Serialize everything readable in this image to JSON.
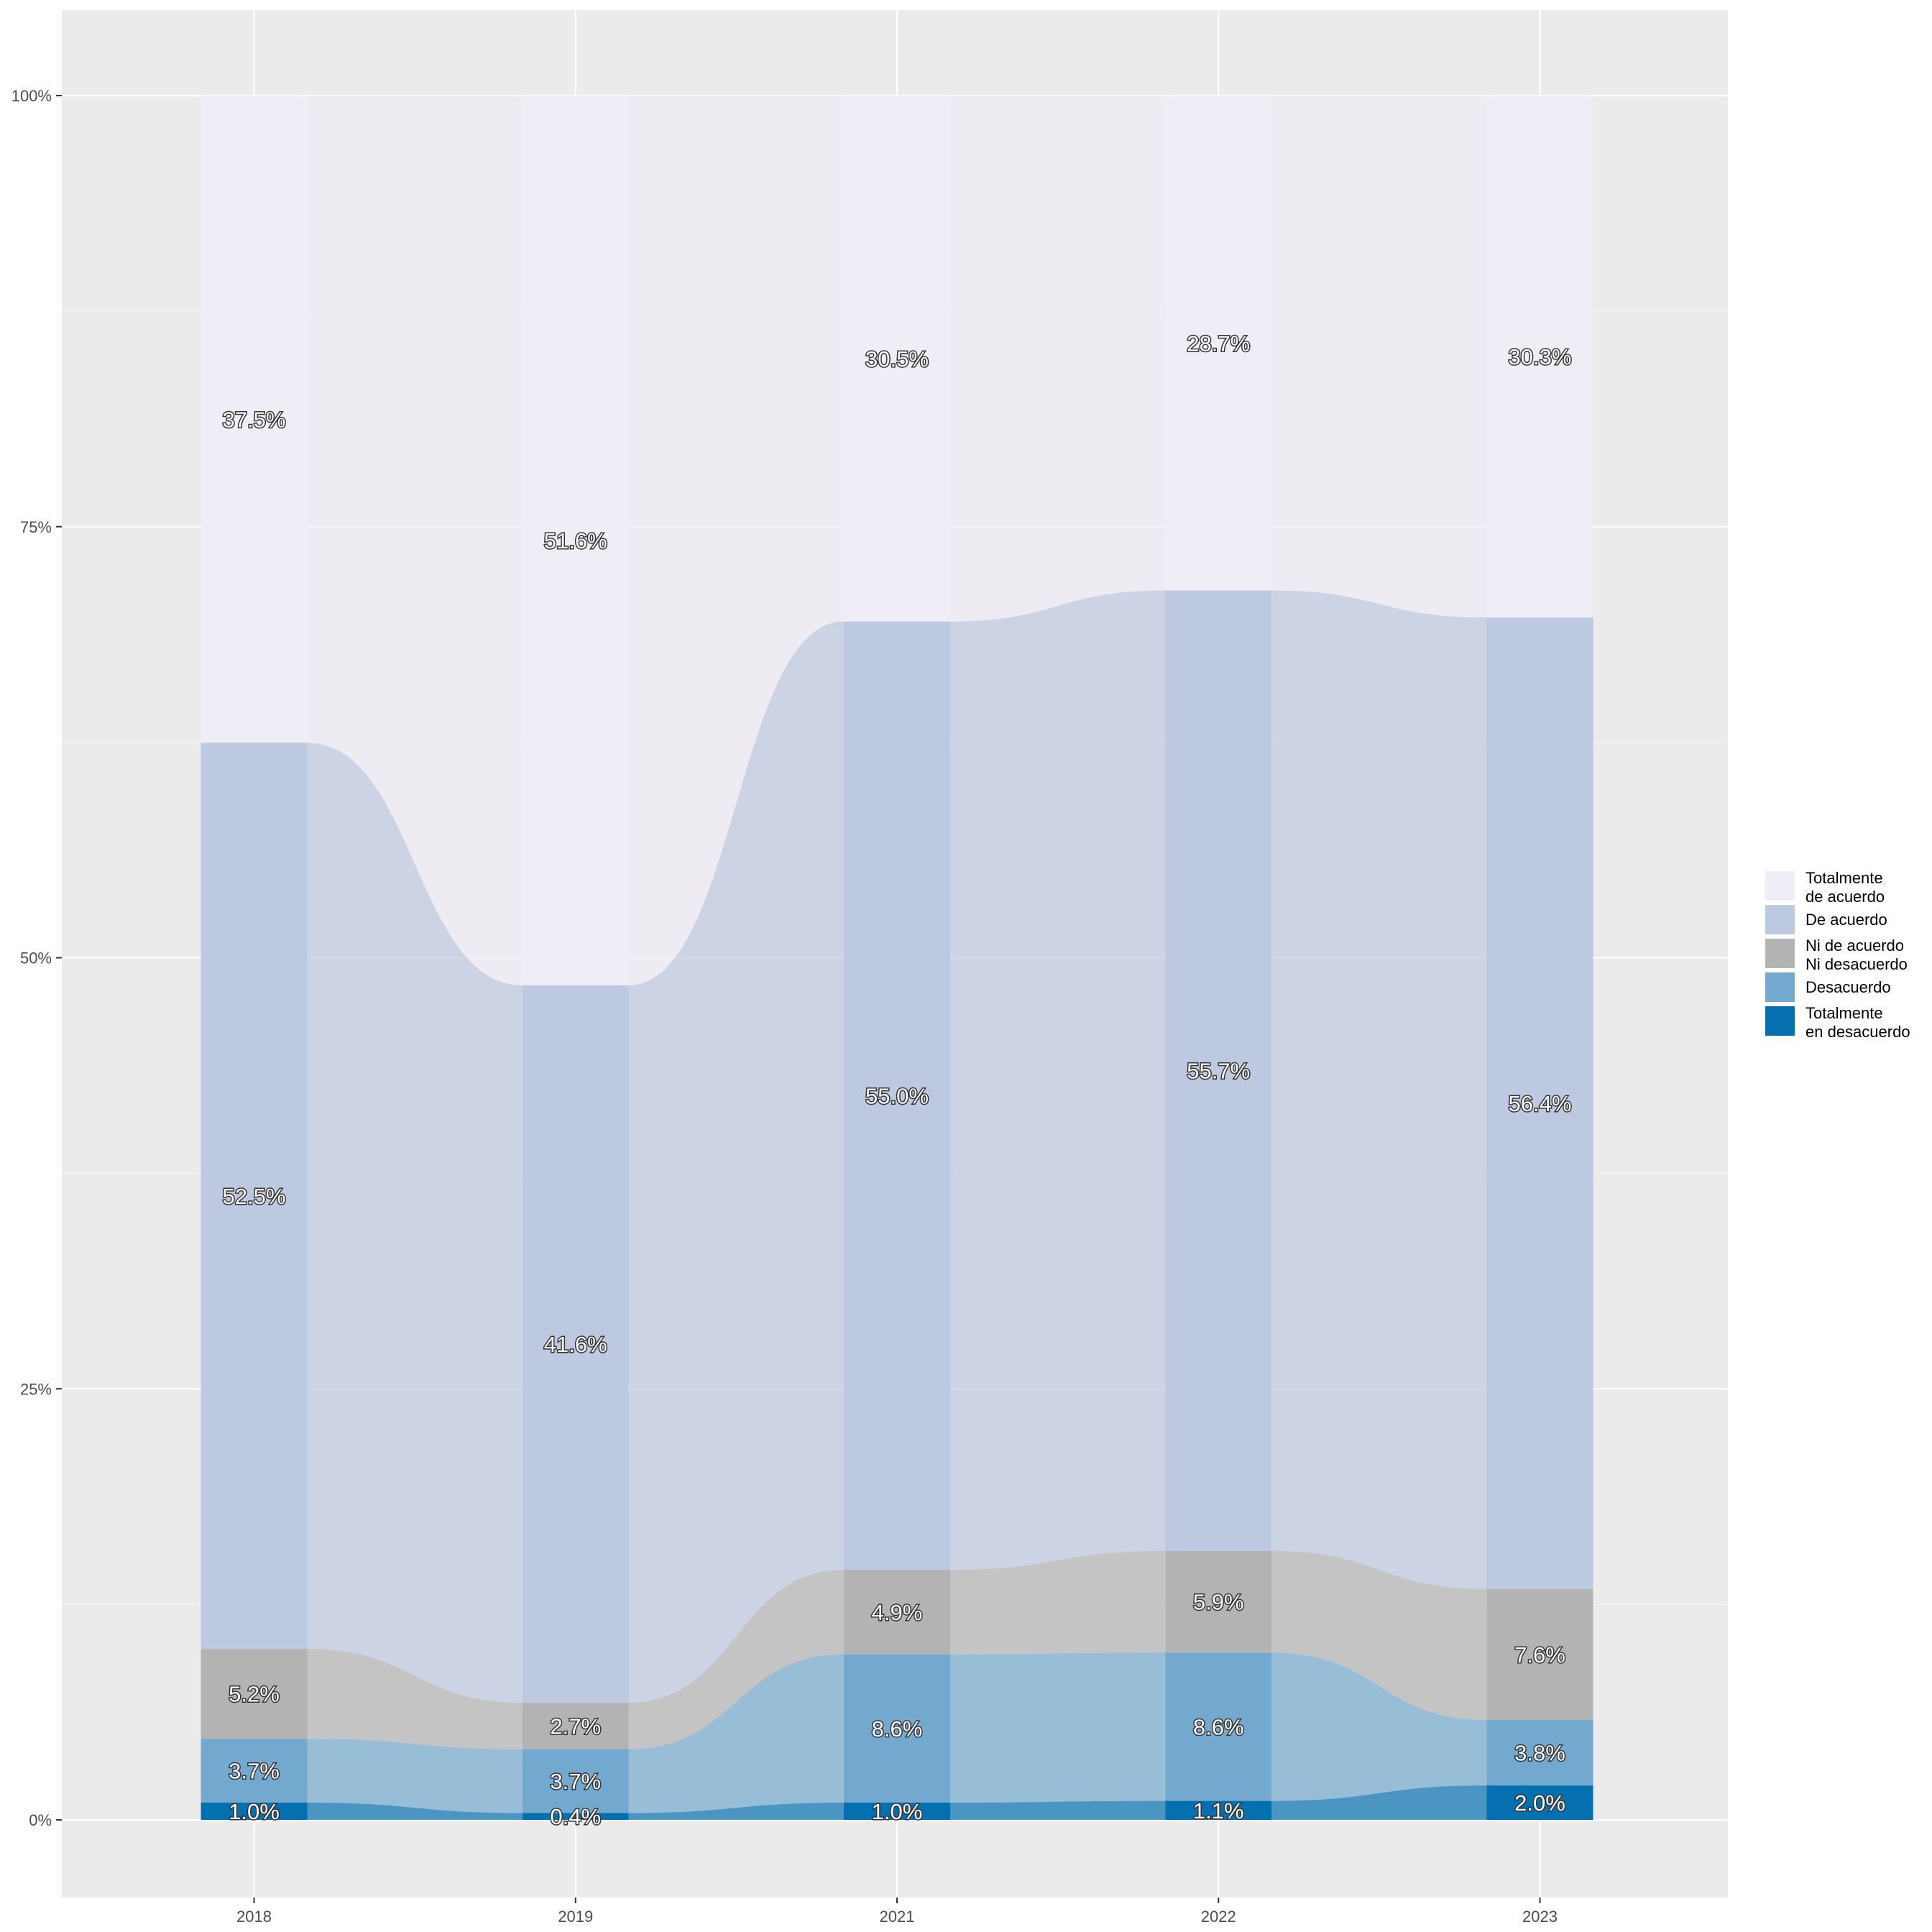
{
  "chart_data": {
    "type": "alluvial",
    "title": "",
    "xlabel": "",
    "ylabel": "",
    "categories": [
      "2018",
      "2019",
      "2021",
      "2022",
      "2023"
    ],
    "y_ticks": [
      "0%",
      "25%",
      "50%",
      "75%",
      "100%"
    ],
    "ylim": [
      -0.05,
      1.05
    ],
    "grid": true,
    "legend_position": "right",
    "series": [
      {
        "name": "Totalmente\nde acuerdo",
        "color": "#efedf5",
        "values": [
          37.5,
          51.6,
          30.5,
          28.7,
          30.3
        ],
        "labels": [
          "37.5%",
          "51.6%",
          "30.5%",
          "28.7%",
          "30.3%"
        ]
      },
      {
        "name": "De acuerdo",
        "color": "#bdc9e1",
        "values": [
          52.5,
          41.6,
          55.0,
          55.7,
          56.4
        ],
        "labels": [
          "52.5%",
          "41.6%",
          "55.0%",
          "55.7%",
          "56.4%"
        ]
      },
      {
        "name": "Ni de acuerdo\nNi desacuerdo",
        "color": "#b3b3b3",
        "values": [
          5.2,
          2.7,
          4.9,
          5.9,
          7.6
        ],
        "labels": [
          "5.2%",
          "2.7%",
          "4.9%",
          "5.9%",
          "7.6%"
        ]
      },
      {
        "name": "Desacuerdo",
        "color": "#74a9cf",
        "values": [
          3.7,
          3.7,
          8.6,
          8.6,
          3.8
        ],
        "labels": [
          "3.7%",
          "3.7%",
          "8.6%",
          "8.6%",
          "3.8%"
        ]
      },
      {
        "name": "Totalmente\nen desacuerdo",
        "color": "#0570b0",
        "values": [
          1.0,
          0.4,
          1.0,
          1.1,
          2.0
        ],
        "labels": [
          "1.0%",
          "0.4%",
          "1.0%",
          "1.1%",
          "2.0%"
        ]
      }
    ]
  }
}
